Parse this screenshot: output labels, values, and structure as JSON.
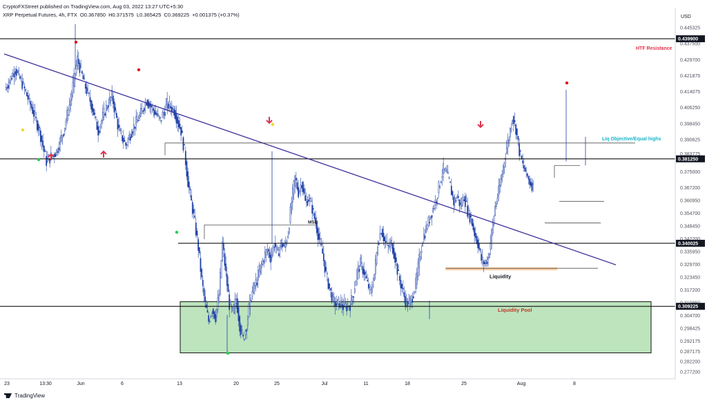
{
  "header": {
    "publisher": "CryptoFXStreet published on TradingView.com, Aug 03, 2022 13:27 UTC+5:30",
    "symbol": "XRP Perpetual Futures, 4h, FTX",
    "open": "O0.367850",
    "high": "H0.371575",
    "low": "L0.365425",
    "close": "C0.369225",
    "change": "+0.001375 (+0.37%)"
  },
  "footer": {
    "logo_text": "TradingView"
  },
  "colors": {
    "candle": "#1e40a8",
    "trendline": "#3b2f9a",
    "liquidity_pool_fill": "#a7dba7",
    "liquidity_fill": "#f9c89a",
    "arrow": "#e0344f",
    "dot_red": "#e0141e",
    "dot_green": "#22d052",
    "dot_yellow": "#f5d530",
    "htf_label": "#e0344f",
    "liq_objective_label": "#1ab3c9",
    "liquidity_pool_label": "#c0392b"
  },
  "chart_data": {
    "type": "candlestick",
    "title": "",
    "price_axis": {
      "currency": "USD",
      "ticks": [
        "0.445325",
        "0.437500",
        "0.429700",
        "0.421875",
        "0.414075",
        "0.406250",
        "0.398450",
        "0.390625",
        "0.383775",
        "0.375000",
        "0.367200",
        "0.360950",
        "0.354700",
        "0.348450",
        "0.342200",
        "0.335950",
        "0.329700",
        "0.323450",
        "0.317200",
        "0.310950",
        "0.304700",
        "0.298425",
        "0.292175",
        "0.287175",
        "0.282200",
        "0.277200"
      ],
      "ylim": [
        0.2745,
        0.4505
      ]
    },
    "time_axis": {
      "ticks": [
        "23",
        "13:30",
        "Jun",
        "6",
        "13",
        "20",
        "25",
        "Jul",
        "11",
        "18",
        "25",
        "Aug",
        "8"
      ]
    },
    "price_levels": [
      {
        "name": "HTF Resistance",
        "value": "0.439900"
      },
      {
        "name": "",
        "value": "0.381250"
      },
      {
        "name": "",
        "value": "0.340025"
      },
      {
        "name": "",
        "value": "0.309225"
      }
    ],
    "annotations": {
      "htf_resistance": "HTF Resistance",
      "liq_objective": "Liq Objective/Equal highs",
      "msb": "MSB",
      "liquidity": "Liquidity",
      "liquidity_pool": "Liquidity Pool"
    },
    "trendline": {
      "from": [
        "May 22",
        0.4325
      ],
      "to": [
        "Aug 6",
        0.3295
      ]
    },
    "liquidity_pool_zone": {
      "top": 0.3115,
      "bottom": 0.2865
    },
    "liquidity_zone": {
      "top": 0.3283,
      "bottom": 0.3268
    },
    "price_path": [
      [
        0,
        0.415
      ],
      [
        3,
        0.425
      ],
      [
        5,
        0.418
      ],
      [
        8,
        0.405
      ],
      [
        10,
        0.395
      ],
      [
        12,
        0.38
      ],
      [
        15,
        0.385
      ],
      [
        17,
        0.395
      ],
      [
        19,
        0.41
      ],
      [
        21,
        0.43
      ],
      [
        23,
        0.418
      ],
      [
        25,
        0.408
      ],
      [
        27,
        0.395
      ],
      [
        29,
        0.405
      ],
      [
        31,
        0.412
      ],
      [
        33,
        0.395
      ],
      [
        35,
        0.388
      ],
      [
        37,
        0.396
      ],
      [
        39,
        0.402
      ],
      [
        41,
        0.41
      ],
      [
        43,
        0.405
      ],
      [
        45,
        0.4
      ],
      [
        47,
        0.408
      ],
      [
        49,
        0.405
      ],
      [
        51,
        0.395
      ],
      [
        52,
        0.385
      ],
      [
        53,
        0.37
      ],
      [
        54,
        0.36
      ],
      [
        55,
        0.35
      ],
      [
        56,
        0.338
      ],
      [
        57,
        0.322
      ],
      [
        58,
        0.31
      ],
      [
        59,
        0.302
      ],
      [
        60,
        0.308
      ],
      [
        61,
        0.304
      ],
      [
        62,
        0.315
      ],
      [
        63,
        0.34
      ],
      [
        64,
        0.325
      ],
      [
        65,
        0.31
      ],
      [
        66,
        0.306
      ],
      [
        67,
        0.313
      ],
      [
        68,
        0.3
      ],
      [
        69,
        0.293
      ],
      [
        70,
        0.3
      ],
      [
        71,
        0.312
      ],
      [
        72,
        0.318
      ],
      [
        73,
        0.322
      ],
      [
        74,
        0.328
      ],
      [
        75,
        0.333
      ],
      [
        76,
        0.337
      ],
      [
        77,
        0.333
      ],
      [
        78,
        0.34
      ],
      [
        79,
        0.335
      ],
      [
        80,
        0.34
      ],
      [
        81,
        0.338
      ],
      [
        82,
        0.345
      ],
      [
        83,
        0.36
      ],
      [
        84,
        0.372
      ],
      [
        85,
        0.365
      ],
      [
        86,
        0.37
      ],
      [
        87,
        0.36
      ],
      [
        88,
        0.362
      ],
      [
        89,
        0.357
      ],
      [
        90,
        0.35
      ],
      [
        91,
        0.342
      ],
      [
        92,
        0.335
      ],
      [
        93,
        0.325
      ],
      [
        94,
        0.318
      ],
      [
        95,
        0.312
      ],
      [
        96,
        0.31
      ],
      [
        97,
        0.311
      ],
      [
        98,
        0.309
      ],
      [
        99,
        0.309
      ],
      [
        100,
        0.31
      ],
      [
        101,
        0.316
      ],
      [
        102,
        0.326
      ],
      [
        103,
        0.33
      ],
      [
        104,
        0.326
      ],
      [
        105,
        0.32
      ],
      [
        106,
        0.316
      ],
      [
        107,
        0.325
      ],
      [
        108,
        0.34
      ],
      [
        109,
        0.347
      ],
      [
        110,
        0.341
      ],
      [
        111,
        0.338
      ],
      [
        112,
        0.34
      ],
      [
        113,
        0.333
      ],
      [
        114,
        0.324
      ],
      [
        115,
        0.318
      ],
      [
        116,
        0.312
      ],
      [
        117,
        0.31
      ],
      [
        118,
        0.314
      ],
      [
        119,
        0.32
      ],
      [
        120,
        0.332
      ],
      [
        121,
        0.342
      ],
      [
        122,
        0.347
      ],
      [
        123,
        0.352
      ],
      [
        124,
        0.357
      ],
      [
        125,
        0.362
      ],
      [
        126,
        0.37
      ],
      [
        127,
        0.376
      ],
      [
        128,
        0.374
      ],
      [
        129,
        0.368
      ],
      [
        130,
        0.36
      ],
      [
        131,
        0.363
      ],
      [
        132,
        0.358
      ],
      [
        133,
        0.363
      ],
      [
        134,
        0.356
      ],
      [
        135,
        0.352
      ],
      [
        136,
        0.345
      ],
      [
        137,
        0.34
      ],
      [
        138,
        0.332
      ],
      [
        139,
        0.33
      ],
      [
        140,
        0.333
      ],
      [
        141,
        0.345
      ],
      [
        142,
        0.358
      ],
      [
        143,
        0.365
      ],
      [
        144,
        0.374
      ],
      [
        145,
        0.384
      ],
      [
        146,
        0.392
      ],
      [
        147,
        0.402
      ],
      [
        148,
        0.396
      ],
      [
        149,
        0.385
      ],
      [
        150,
        0.378
      ],
      [
        151,
        0.374
      ],
      [
        152,
        0.37
      ],
      [
        153,
        0.368
      ]
    ],
    "price_path_x_units": "4h bars from the left edge of the chart"
  }
}
